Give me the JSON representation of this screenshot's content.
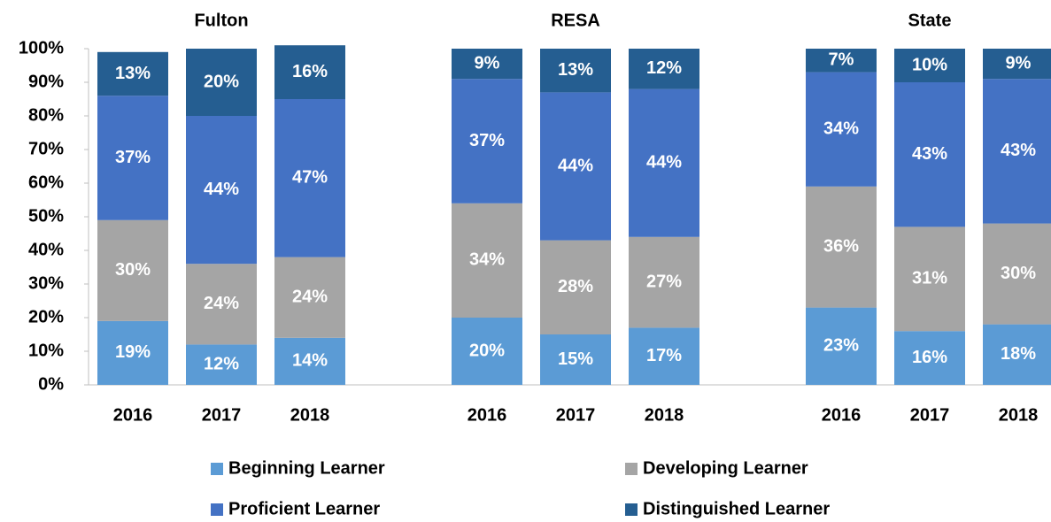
{
  "chart_data": {
    "type": "stacked-bar",
    "groups": [
      "Fulton",
      "RESA",
      "State"
    ],
    "categories": [
      "2016",
      "2017",
      "2018",
      "2016",
      "2017",
      "2018",
      "2016",
      "2017",
      "2018"
    ],
    "series": [
      {
        "name": "Beginning Learner",
        "color": "#5b9bd5",
        "values": [
          19,
          12,
          14,
          20,
          15,
          17,
          23,
          16,
          18
        ],
        "value_labels": [
          "19%",
          "12%",
          "14%",
          "20%",
          "15%",
          "17%",
          "23%",
          "16%",
          "18%"
        ]
      },
      {
        "name": "Developing Learner",
        "color": "#a5a5a5",
        "values": [
          30,
          24,
          24,
          34,
          28,
          27,
          36,
          31,
          30
        ],
        "value_labels": [
          "30%",
          "24%",
          "24%",
          "34%",
          "28%",
          "27%",
          "36%",
          "31%",
          "30%"
        ]
      },
      {
        "name": "Proficient Learner",
        "color": "#4472c4",
        "values": [
          37,
          44,
          47,
          37,
          44,
          44,
          34,
          43,
          43
        ],
        "value_labels": [
          "37%",
          "44%",
          "47%",
          "37%",
          "44%",
          "44%",
          "34%",
          "43%",
          "43%"
        ]
      },
      {
        "name": "Distinguished Learner",
        "color": "#255e91",
        "values": [
          13,
          20,
          16,
          9,
          13,
          12,
          7,
          10,
          9
        ],
        "value_labels": [
          "13%",
          "20%",
          "16%",
          "9%",
          "13%",
          "12%",
          "7%",
          "10%",
          "9%"
        ]
      }
    ],
    "ylim": [
      0,
      100
    ],
    "yticks": [
      {
        "value": 0,
        "label": "0%"
      },
      {
        "value": 10,
        "label": "10%"
      },
      {
        "value": 20,
        "label": "20%"
      },
      {
        "value": 30,
        "label": "30%"
      },
      {
        "value": 40,
        "label": "40%"
      },
      {
        "value": 50,
        "label": "50%"
      },
      {
        "value": 60,
        "label": "60%"
      },
      {
        "value": 70,
        "label": "70%"
      },
      {
        "value": 80,
        "label": "80%"
      },
      {
        "value": 90,
        "label": "90%"
      },
      {
        "value": 100,
        "label": "100%"
      }
    ],
    "grid": false
  }
}
